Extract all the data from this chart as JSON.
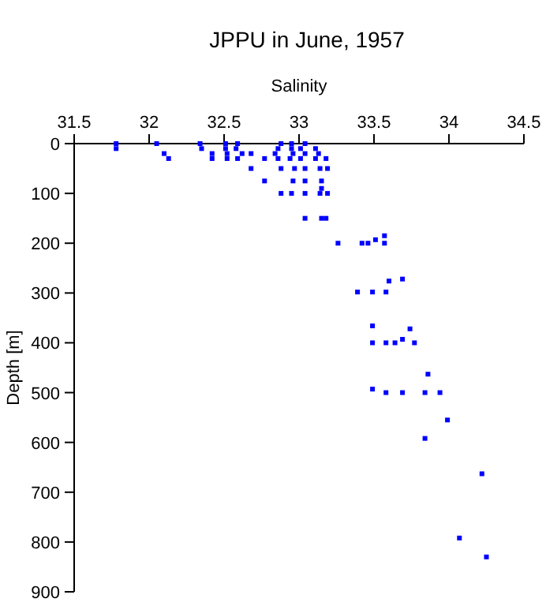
{
  "chart_data": {
    "type": "scatter",
    "title": "JPPU in June, 1957",
    "xlabel": "Salinity",
    "ylabel": "Depth [m]",
    "xlim": [
      31.5,
      34.5
    ],
    "xticks": [
      31.5,
      32,
      32.5,
      33,
      33.5,
      34,
      34.5
    ],
    "ylim": [
      900,
      0
    ],
    "yticks": [
      0,
      100,
      200,
      300,
      400,
      500,
      600,
      700,
      800,
      900
    ],
    "grid": false,
    "marker": "square",
    "series": [
      {
        "color": "#0000ff",
        "x": [
          31.78,
          31.78,
          32.05,
          32.1,
          32.13,
          32.34,
          32.35,
          32.42,
          32.42,
          32.51,
          32.51,
          32.52,
          32.52,
          32.59,
          32.58,
          32.62,
          32.59,
          32.68,
          32.68,
          32.77,
          32.77,
          32.88,
          32.86,
          32.84,
          32.86,
          32.88,
          32.88,
          32.95,
          32.95,
          32.96,
          32.94,
          32.97,
          32.96,
          32.95,
          33.04,
          33.01,
          33.04,
          33.01,
          33.04,
          33.04,
          33.04,
          33.04,
          33.11,
          33.13,
          33.11,
          33.14,
          33.15,
          33.15,
          33.14,
          33.15,
          33.18,
          33.19,
          33.19,
          33.18,
          33.57,
          33.51,
          33.46,
          33.42,
          33.26,
          33.57,
          33.69,
          33.6,
          33.39,
          33.49,
          33.58,
          33.49,
          33.74,
          33.49,
          33.58,
          33.64,
          33.69,
          33.77,
          33.86,
          33.49,
          33.58,
          33.69,
          33.84,
          33.94,
          33.99,
          33.84,
          34.22,
          34.07,
          34.25
        ],
        "values": [
          0,
          10,
          0,
          20,
          30,
          0,
          10,
          20,
          30,
          0,
          10,
          20,
          30,
          0,
          10,
          20,
          30,
          20,
          50,
          30,
          75,
          0,
          10,
          20,
          30,
          50,
          100,
          0,
          10,
          20,
          30,
          50,
          75,
          100,
          0,
          10,
          20,
          30,
          50,
          75,
          100,
          150,
          10,
          20,
          30,
          50,
          75,
          90,
          100,
          150,
          30,
          50,
          100,
          150,
          185,
          193,
          200,
          200,
          200,
          200,
          272,
          276,
          298,
          298,
          298,
          366,
          372,
          400,
          400,
          400,
          393,
          400,
          463,
          493,
          500,
          500,
          500,
          500,
          555,
          592,
          663,
          792,
          830
        ]
      }
    ]
  }
}
